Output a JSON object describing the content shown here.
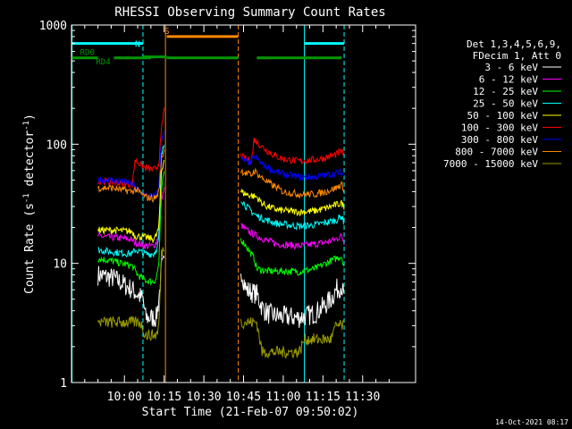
{
  "chart_data": {
    "type": "line",
    "title": "RHESSI Observing Summary Count Rates",
    "xlabel": "Start Time (21-Feb-07 09:50:02)",
    "ylabel_prefix": "Count Rate (s",
    "ylabel_sup1": "-1",
    "ylabel_mid": " detector",
    "ylabel_sup2": "-1",
    "ylabel_suffix": ")",
    "yscale": "log",
    "ylim": [
      1,
      1000
    ],
    "xlim_min": [
      -10,
      120
    ],
    "x_ticks": [
      {
        "v": 10,
        "label": "10:00"
      },
      {
        "v": 25,
        "label": "10:15"
      },
      {
        "v": 40,
        "label": "10:30"
      },
      {
        "v": 55,
        "label": "10:45"
      },
      {
        "v": 70,
        "label": "11:00"
      },
      {
        "v": 85,
        "label": "11:15"
      },
      {
        "v": 100,
        "label": "11:30"
      }
    ],
    "y_ticks": [
      {
        "v": 1,
        "label": "1"
      },
      {
        "v": 10,
        "label": "10"
      },
      {
        "v": 100,
        "label": "100"
      },
      {
        "v": 1000,
        "label": "1000"
      }
    ],
    "legend_header": [
      "Det 1,3,4,5,6,9,",
      "FDecim 1, Att 0"
    ],
    "series": [
      {
        "name": "3 - 6 keV",
        "color": "#ffffff",
        "pre": [
          [
            0,
            8
          ],
          [
            6,
            7.5
          ],
          [
            13,
            6
          ],
          [
            17,
            5
          ],
          [
            18,
            3.5
          ],
          [
            22,
            3.5
          ],
          [
            23,
            5
          ],
          [
            24,
            9
          ],
          [
            25,
            10
          ]
        ],
        "post": [
          [
            54,
            9
          ],
          [
            56,
            6
          ],
          [
            60,
            5.5
          ],
          [
            62,
            4.3
          ],
          [
            64,
            3.8
          ],
          [
            68,
            3.6
          ],
          [
            76,
            3.5
          ],
          [
            82,
            3.8
          ],
          [
            86,
            4.5
          ],
          [
            88,
            5
          ],
          [
            90,
            6
          ],
          [
            92,
            6.5
          ],
          [
            93,
            5
          ]
        ]
      },
      {
        "name": "6 - 12 keV",
        "color": "#ff00ff",
        "pre": [
          [
            0,
            17
          ],
          [
            5,
            16.5
          ],
          [
            12,
            16
          ],
          [
            14,
            15
          ],
          [
            18,
            14
          ],
          [
            21,
            14
          ],
          [
            22,
            15
          ],
          [
            23,
            18
          ],
          [
            24,
            35
          ],
          [
            25,
            42
          ]
        ],
        "post": [
          [
            54,
            21
          ],
          [
            56,
            19
          ],
          [
            60,
            17
          ],
          [
            64,
            15.5
          ],
          [
            68,
            14.5
          ],
          [
            76,
            14
          ],
          [
            82,
            14.5
          ],
          [
            86,
            15
          ],
          [
            90,
            16
          ],
          [
            92,
            17
          ],
          [
            93,
            15
          ]
        ]
      },
      {
        "name": "12 - 25 keV",
        "color": "#00ff00",
        "pre": [
          [
            0,
            11
          ],
          [
            5,
            10.5
          ],
          [
            13,
            9.5
          ],
          [
            15,
            8
          ],
          [
            18,
            7.2
          ],
          [
            21,
            7
          ],
          [
            22,
            7.5
          ],
          [
            23,
            10
          ],
          [
            24,
            40
          ],
          [
            25,
            60
          ]
        ],
        "post": [
          [
            54,
            16
          ],
          [
            56,
            14
          ],
          [
            59,
            11
          ],
          [
            60,
            9
          ],
          [
            64,
            8.6
          ],
          [
            70,
            8.6
          ],
          [
            76,
            8.5
          ],
          [
            82,
            9
          ],
          [
            86,
            10
          ],
          [
            90,
            11
          ],
          [
            92,
            11.5
          ],
          [
            93,
            9.5
          ]
        ]
      },
      {
        "name": "25 - 50 keV",
        "color": "#00ffff",
        "pre": [
          [
            0,
            13
          ],
          [
            5,
            12.5
          ],
          [
            13,
            12
          ],
          [
            14,
            13
          ],
          [
            18,
            12
          ],
          [
            21,
            12
          ],
          [
            22,
            13
          ],
          [
            23,
            16
          ],
          [
            24,
            80
          ],
          [
            25,
            100
          ]
        ],
        "post": [
          [
            54,
            35
          ],
          [
            56,
            30
          ],
          [
            60,
            25
          ],
          [
            64,
            23
          ],
          [
            68,
            21.5
          ],
          [
            76,
            20.5
          ],
          [
            82,
            21
          ],
          [
            86,
            22
          ],
          [
            90,
            23
          ],
          [
            92,
            25
          ],
          [
            93,
            22
          ]
        ]
      },
      {
        "name": "50 - 100 keV",
        "color": "#ffff00",
        "pre": [
          [
            0,
            19
          ],
          [
            5,
            19
          ],
          [
            13,
            18.5
          ],
          [
            14,
            17
          ],
          [
            18,
            16.5
          ],
          [
            21,
            16
          ],
          [
            22,
            17
          ],
          [
            23,
            20
          ],
          [
            24,
            60
          ],
          [
            25,
            75
          ]
        ],
        "post": [
          [
            54,
            40
          ],
          [
            56,
            38
          ],
          [
            60,
            36
          ],
          [
            62,
            32
          ],
          [
            64,
            30
          ],
          [
            68,
            28
          ],
          [
            76,
            27
          ],
          [
            82,
            27.5
          ],
          [
            86,
            29
          ],
          [
            90,
            31
          ],
          [
            92,
            32
          ],
          [
            93,
            30
          ]
        ]
      },
      {
        "name": "100 - 300 keV",
        "color": "#ff0000",
        "pre": [
          [
            0,
            49
          ],
          [
            5,
            48
          ],
          [
            13,
            46
          ],
          [
            14,
            74
          ],
          [
            16,
            68
          ],
          [
            18,
            63
          ],
          [
            21,
            61
          ],
          [
            22,
            62
          ],
          [
            23,
            70
          ],
          [
            24,
            130
          ],
          [
            25,
            200
          ]
        ],
        "post": [
          [
            54,
            80
          ],
          [
            56,
            75
          ],
          [
            58,
            72
          ],
          [
            59,
            110
          ],
          [
            62,
            95
          ],
          [
            66,
            82
          ],
          [
            70,
            75
          ],
          [
            76,
            72
          ],
          [
            82,
            74
          ],
          [
            86,
            77
          ],
          [
            90,
            82
          ],
          [
            92,
            88
          ],
          [
            93,
            80
          ]
        ]
      },
      {
        "name": "300 - 800 keV",
        "color": "#0000ff",
        "pre": [
          [
            0,
            50
          ],
          [
            5,
            50
          ],
          [
            13,
            47
          ],
          [
            14,
            43
          ],
          [
            16,
            40
          ],
          [
            18,
            37
          ],
          [
            21,
            36
          ],
          [
            22,
            38
          ],
          [
            23,
            45
          ],
          [
            24,
            110
          ],
          [
            25,
            130
          ]
        ],
        "post": [
          [
            54,
            75
          ],
          [
            56,
            72
          ],
          [
            58,
            70
          ],
          [
            59,
            80
          ],
          [
            62,
            68
          ],
          [
            66,
            60
          ],
          [
            70,
            56
          ],
          [
            76,
            53
          ],
          [
            82,
            53
          ],
          [
            86,
            55
          ],
          [
            90,
            57
          ],
          [
            92,
            58
          ],
          [
            93,
            54
          ]
        ]
      },
      {
        "name": "800 - 7000 keV",
        "color": "#ff8800",
        "pre": [
          [
            0,
            43
          ],
          [
            5,
            43
          ],
          [
            13,
            40
          ],
          [
            14,
            42
          ],
          [
            16,
            39
          ],
          [
            18,
            36
          ],
          [
            21,
            35
          ],
          [
            22,
            36
          ],
          [
            23,
            40
          ],
          [
            24,
            75
          ],
          [
            25,
            90
          ]
        ],
        "post": [
          [
            54,
            60
          ],
          [
            56,
            57
          ],
          [
            58,
            55
          ],
          [
            59,
            60
          ],
          [
            62,
            52
          ],
          [
            66,
            45
          ],
          [
            70,
            40
          ],
          [
            76,
            38
          ],
          [
            82,
            38
          ],
          [
            86,
            40
          ],
          [
            90,
            43
          ],
          [
            92,
            46
          ],
          [
            93,
            42
          ]
        ]
      },
      {
        "name": "7000 - 15000 keV",
        "color": "#999900",
        "pre": [
          [
            0,
            3.2
          ],
          [
            16,
            3.2
          ],
          [
            18,
            2.5
          ],
          [
            22,
            2.5
          ],
          [
            23,
            3
          ],
          [
            24,
            12
          ],
          [
            25,
            14
          ]
        ],
        "post": [
          [
            54,
            3.2
          ],
          [
            60,
            3.2
          ],
          [
            62,
            1.8
          ],
          [
            76,
            1.8
          ],
          [
            78,
            2.3
          ],
          [
            88,
            2.3
          ],
          [
            90,
            3
          ],
          [
            93,
            3
          ]
        ]
      }
    ],
    "flags": [
      {
        "name": "N",
        "color": "#00ffff",
        "y": 700,
        "segments": [
          [
            -10,
            17
          ],
          [
            78,
            93
          ]
        ]
      },
      {
        "name": "S",
        "color": "#ff8800",
        "y": 800,
        "segments": [
          [
            26,
            53
          ]
        ]
      },
      {
        "name": "RD0",
        "color": "#009900",
        "y": 530,
        "segments": [
          [
            -10,
            0
          ],
          [
            6,
            20
          ],
          [
            26,
            53
          ],
          [
            60,
            92
          ]
        ]
      },
      {
        "name": "RD4",
        "color": "#009900",
        "y": 540,
        "segments": [
          [
            17,
            26
          ]
        ]
      }
    ],
    "vlines": [
      {
        "x": -9.8,
        "color": "#00ffff",
        "dash": false
      },
      {
        "x": 17,
        "color": "#00ffff",
        "dash": true
      },
      {
        "x": 25.5,
        "color": "#ff8800",
        "dash": false
      },
      {
        "x": 53,
        "color": "#ff8800",
        "dash": true
      },
      {
        "x": 78,
        "color": "#00ffff",
        "dash": false
      },
      {
        "x": 93,
        "color": "#00ffff",
        "dash": true
      }
    ]
  },
  "footer": {
    "timestamp": "14-Oct-2021 08:17"
  }
}
